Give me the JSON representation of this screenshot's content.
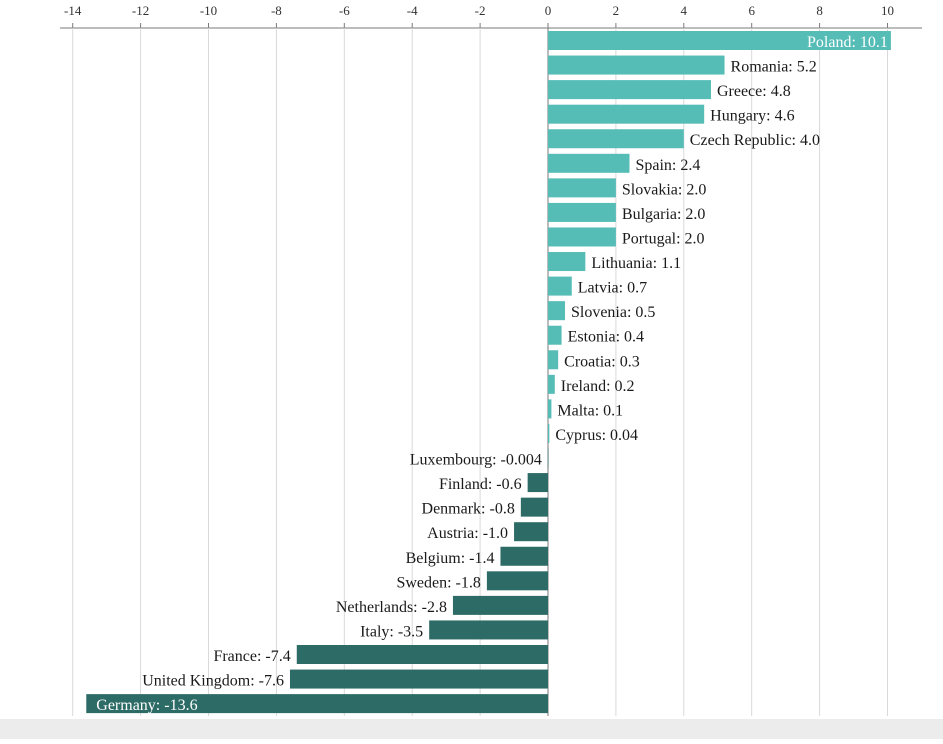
{
  "chart_data": {
    "type": "bar",
    "orientation": "horizontal",
    "title": "",
    "xlabel": "",
    "ylabel": "",
    "xlim": [
      -14,
      11
    ],
    "xticks": [
      -14,
      -12,
      -10,
      -8,
      -6,
      -4,
      -2,
      0,
      2,
      4,
      6,
      8,
      10
    ],
    "grid": true,
    "legend": "none",
    "colors": {
      "positive": "#55bcb6",
      "negative": "#2d6b66"
    },
    "series": [
      {
        "values": [
          10.1,
          5.2,
          4.8,
          4.6,
          4.0,
          2.4,
          2.0,
          2.0,
          2.0,
          1.1,
          0.7,
          0.5,
          0.4,
          0.3,
          0.2,
          0.1,
          0.04,
          -0.004,
          -0.6,
          -0.8,
          -1.0,
          -1.4,
          -1.8,
          -2.8,
          -3.5,
          -7.4,
          -7.6,
          -13.6
        ]
      }
    ],
    "categories": [
      "Poland",
      "Romania",
      "Greece",
      "Hungary",
      "Czech Republic",
      "Spain",
      "Slovakia",
      "Bulgaria",
      "Portugal",
      "Lithuania",
      "Latvia",
      "Slovenia",
      "Estonia",
      "Croatia",
      "Ireland",
      "Malta",
      "Cyprus",
      "Luxembourg",
      "Finland",
      "Denmark",
      "Austria",
      "Belgium",
      "Sweden",
      "Netherlands",
      "Italy",
      "France",
      "United Kingdom",
      "Germany"
    ],
    "data_labels": [
      "Poland: 10.1",
      "Romania: 5.2",
      "Greece: 4.8",
      "Hungary: 4.6",
      "Czech Republic: 4.0",
      "Spain: 2.4",
      "Slovakia: 2.0",
      "Bulgaria: 2.0",
      "Portugal: 2.0",
      "Lithuania: 1.1",
      "Latvia: 0.7",
      "Slovenia: 0.5",
      "Estonia: 0.4",
      "Croatia: 0.3",
      "Ireland: 0.2",
      "Malta: 0.1",
      "Cyprus: 0.04",
      "Luxembourg: -0.004",
      "Finland: -0.6",
      "Denmark: -0.8",
      "Austria: -1.0",
      "Belgium: -1.4",
      "Sweden: -1.8",
      "Netherlands: -2.8",
      "Italy: -3.5",
      "France: -7.4",
      "United Kingdom: -7.6",
      "Germany: -13.6"
    ]
  }
}
